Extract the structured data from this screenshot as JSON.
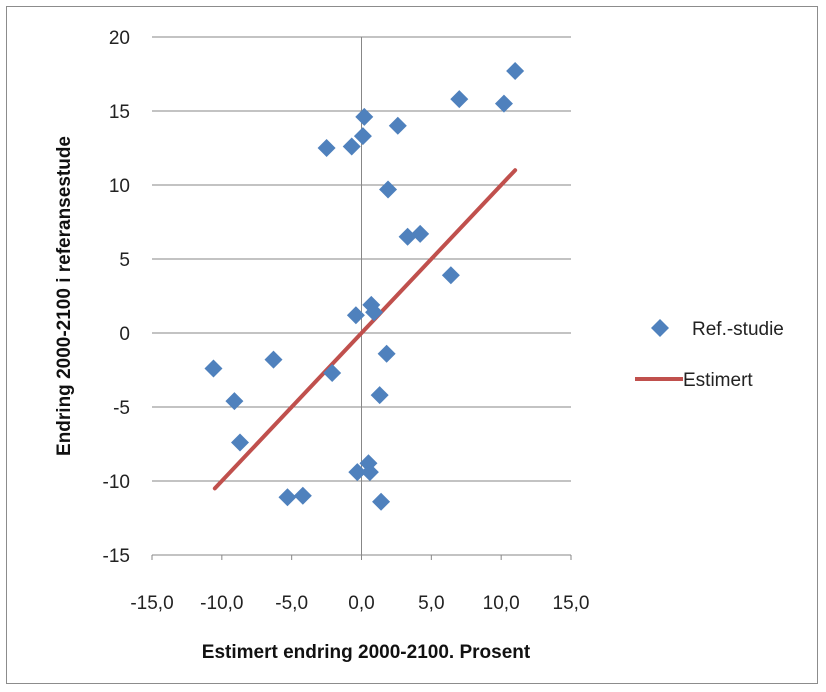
{
  "chart_data": {
    "type": "scatter",
    "xlabel": "Estimert endring 2000-2100. Prosent",
    "ylabel": "Endring 2000-2100 i referansestude",
    "xlim": [
      -15,
      15
    ],
    "ylim": [
      -15,
      20
    ],
    "x_ticks": [
      -15,
      -10,
      -5,
      0,
      5,
      10,
      15
    ],
    "x_tick_labels": [
      "-15,0",
      "-10,0",
      "-5,0",
      "0,0",
      "5,0",
      "10,0",
      "15,0"
    ],
    "y_ticks": [
      -15,
      -10,
      -5,
      0,
      5,
      10,
      15,
      20
    ],
    "y_tick_labels": [
      "-15",
      "-10",
      "-5",
      "0",
      "5",
      "10",
      "15",
      "20"
    ],
    "grid": "horizontal",
    "legend_position": "right",
    "series": [
      {
        "name": "Ref.-studie",
        "kind": "scatter",
        "marker": "diamond",
        "color": "#4f81bd",
        "points": [
          {
            "x": 0.2,
            "y": 14.6
          },
          {
            "x": 0.1,
            "y": 13.3
          },
          {
            "x": -0.7,
            "y": 12.6
          },
          {
            "x": -2.5,
            "y": 12.5
          },
          {
            "x": 2.6,
            "y": 14.0
          },
          {
            "x": 7.0,
            "y": 15.8
          },
          {
            "x": 10.2,
            "y": 15.5
          },
          {
            "x": 11.0,
            "y": 17.7
          },
          {
            "x": 1.9,
            "y": 9.7
          },
          {
            "x": 3.3,
            "y": 6.5
          },
          {
            "x": 4.2,
            "y": 6.7
          },
          {
            "x": 6.4,
            "y": 3.9
          },
          {
            "x": 0.7,
            "y": 1.9
          },
          {
            "x": 0.9,
            "y": 1.4
          },
          {
            "x": -0.4,
            "y": 1.2
          },
          {
            "x": 1.8,
            "y": -1.4
          },
          {
            "x": -2.1,
            "y": -2.7
          },
          {
            "x": -6.3,
            "y": -1.8
          },
          {
            "x": -10.6,
            "y": -2.4
          },
          {
            "x": -9.1,
            "y": -4.6
          },
          {
            "x": 1.3,
            "y": -4.2
          },
          {
            "x": -8.7,
            "y": -7.4
          },
          {
            "x": -0.3,
            "y": -9.4
          },
          {
            "x": 0.5,
            "y": -8.8
          },
          {
            "x": 0.6,
            "y": -9.4
          },
          {
            "x": -5.3,
            "y": -11.1
          },
          {
            "x": -4.2,
            "y": -11.0
          },
          {
            "x": 1.4,
            "y": -11.4
          }
        ]
      },
      {
        "name": "Estimert",
        "kind": "line",
        "color": "#c0504d",
        "points": [
          {
            "x": -10.5,
            "y": -10.5
          },
          {
            "x": 11.0,
            "y": 11.0
          }
        ]
      }
    ]
  }
}
